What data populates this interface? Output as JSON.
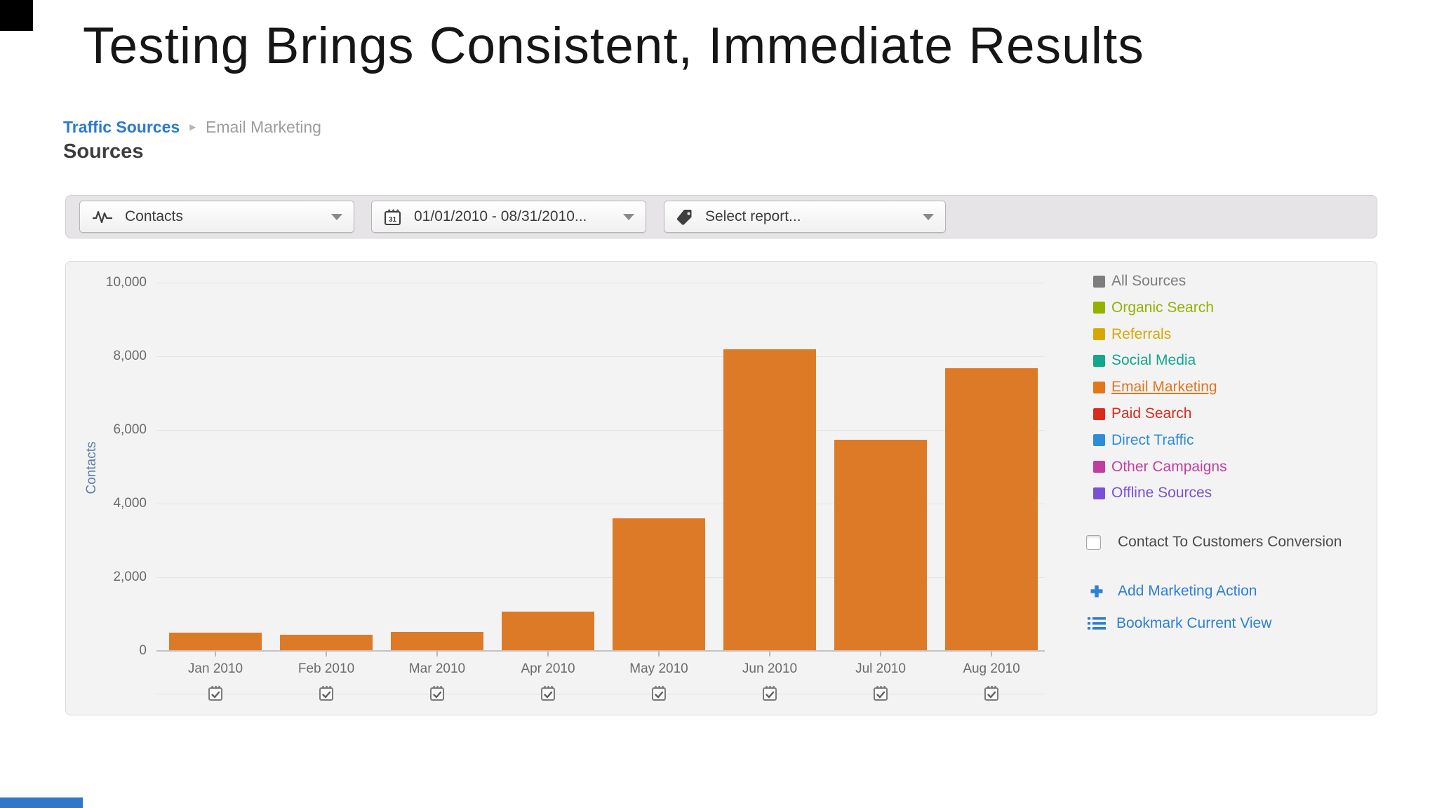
{
  "slide": {
    "title": "Testing Brings Consistent, Immediate Results"
  },
  "breadcrumb": {
    "parent": "Traffic Sources",
    "separator": "►",
    "current": "Email Marketing",
    "page_heading": "Sources"
  },
  "toolbar": {
    "metric_dropdown": {
      "label": "Contacts",
      "icon": "sparkline-icon"
    },
    "daterange_dropdown": {
      "label": "01/01/2010 - 08/31/2010...",
      "icon": "calendar-31-icon"
    },
    "report_dropdown": {
      "label": "Select report...",
      "icon": "tag-icon"
    }
  },
  "chart_data": {
    "type": "bar",
    "title": "",
    "series_name": "Email Marketing",
    "categories": [
      "Jan 2010",
      "Feb 2010",
      "Mar 2010",
      "Apr 2010",
      "May 2010",
      "Jun 2010",
      "Jul 2010",
      "Aug 2010"
    ],
    "values": [
      500,
      440,
      510,
      1070,
      3600,
      8200,
      5730,
      7680
    ],
    "xlabel": "",
    "ylabel": "Contacts",
    "ylim": [
      0,
      10000
    ],
    "yticks": [
      0,
      2000,
      4000,
      6000,
      8000,
      10000
    ],
    "ytick_labels": [
      "0",
      "2,000",
      "4,000",
      "6,000",
      "8,000",
      "10,000"
    ],
    "bar_color": "#DD7A27",
    "grid": true,
    "legend_position": "right",
    "x_marker_icon": "calendar-check-icon"
  },
  "legend": {
    "items": [
      {
        "label": "All Sources",
        "color": "#7D7D7D",
        "underline": false
      },
      {
        "label": "Organic Search",
        "color": "#93B200",
        "underline": false
      },
      {
        "label": "Referrals",
        "color": "#D9A800",
        "underline": false
      },
      {
        "label": "Social Media",
        "color": "#11A88C",
        "underline": false
      },
      {
        "label": "Email Marketing",
        "color": "#E0761D",
        "underline": true
      },
      {
        "label": "Paid Search",
        "color": "#D92A1C",
        "underline": false
      },
      {
        "label": "Direct Traffic",
        "color": "#2E8DD9",
        "underline": false
      },
      {
        "label": "Other Campaigns",
        "color": "#BF3FA0",
        "underline": false
      },
      {
        "label": "Offline Sources",
        "color": "#7A50D8",
        "underline": false
      }
    ]
  },
  "right_panel": {
    "conversion_checkbox": {
      "label": "Contact To Customers Conversion",
      "checked": false
    },
    "actions": [
      {
        "label": "Add Marketing Action",
        "icon": "plus-icon"
      },
      {
        "label": "Bookmark Current View",
        "icon": "list-icon"
      }
    ]
  },
  "colors": {
    "bar_orange": "#DD7A27",
    "link_blue": "#2E7FD9",
    "breadcrumb_blue": "#2A79D0",
    "panel_background": "#F4F3F4",
    "toolbar_background": "#E6E4E7",
    "footer_accent_blue": "#3077C8"
  }
}
